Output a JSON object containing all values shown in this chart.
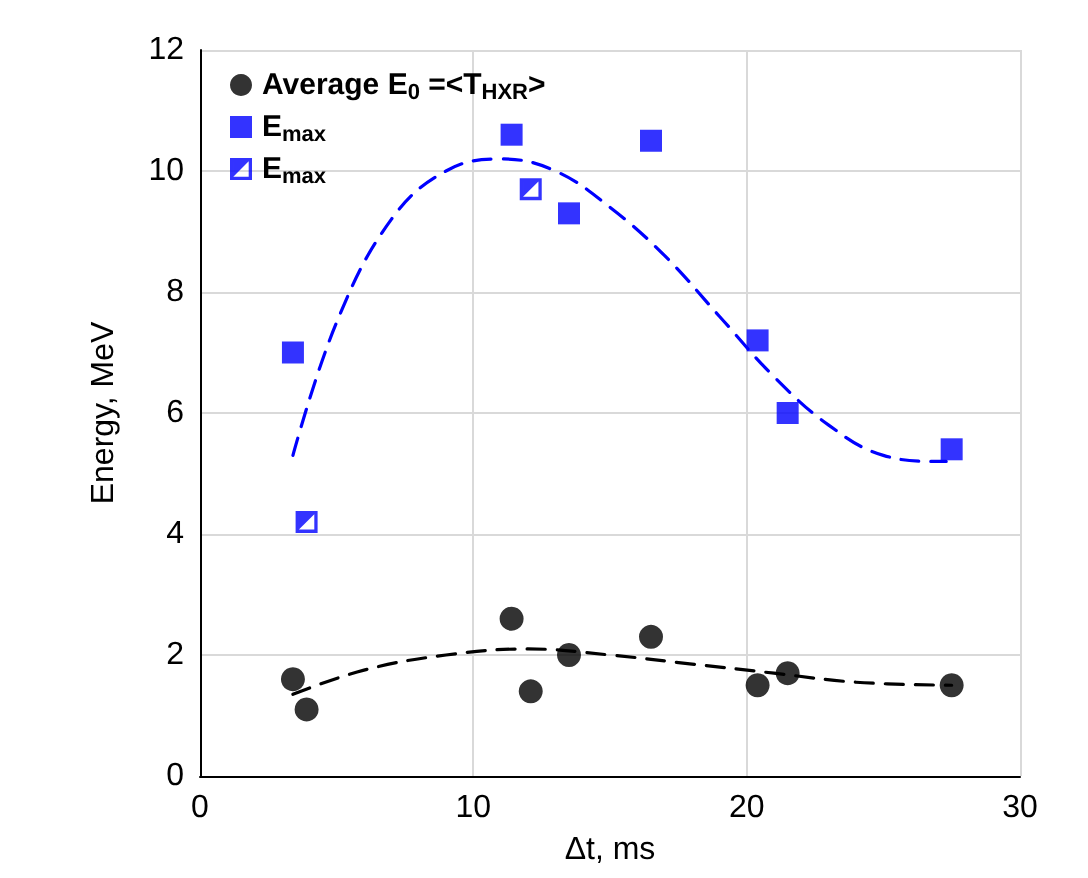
{
  "chart_data": {
    "type": "scatter",
    "xlabel": "Δt, ms",
    "ylabel": "Energy, MeV",
    "xlim": [
      0,
      30
    ],
    "xticks": [
      0,
      10,
      20,
      30
    ],
    "ylim": [
      0,
      12
    ],
    "yticks": [
      0,
      2,
      4,
      6,
      8,
      10,
      12
    ],
    "grid": true,
    "legend": "top left",
    "series": [
      {
        "name": "Average E$_{0}$ =<T$_{HXR}$>",
        "color": "#000000",
        "marker": "circle",
        "x": [
          3.4,
          3.9,
          11.4,
          12.1,
          13.5,
          16.5,
          20.4,
          21.5,
          27.5
        ],
        "values": [
          1.6,
          1.1,
          2.6,
          1.4,
          2.0,
          2.3,
          1.5,
          1.7,
          1.5
        ]
      },
      {
        "name": "E$_{max}$",
        "color": "#0000ff",
        "marker": "square",
        "x": [
          3.4,
          11.4,
          13.5,
          16.5,
          20.4,
          21.5,
          27.5
        ],
        "values": [
          7.0,
          10.6,
          9.3,
          10.5,
          7.2,
          6.0,
          5.4
        ]
      },
      {
        "name": "E$_{max}$",
        "color": "#0000ff",
        "marker": "square",
        "x": [
          3.9,
          12.1
        ],
        "values": [
          4.2,
          9.7
        ]
      },
      {
        "type": "line",
        "color": "#0000ff",
        "line_style": "dashed",
        "marker": "none",
        "x": [
          3.4,
          5,
          7,
          9,
          11,
          13,
          15,
          17,
          19,
          21,
          23,
          25,
          27,
          27.3
        ],
        "values": [
          5.3,
          7.5,
          9.2,
          10.0,
          10.2,
          10.0,
          9.4,
          8.6,
          7.6,
          6.6,
          5.8,
          5.3,
          5.2,
          5.2
        ]
      },
      {
        "type": "line",
        "color": "#000000",
        "line_style": "dashed",
        "marker": "none",
        "x": [
          3.4,
          6,
          9,
          12,
          15,
          18,
          21,
          24,
          27.5
        ],
        "values": [
          1.35,
          1.75,
          2.0,
          2.1,
          2.0,
          1.85,
          1.7,
          1.55,
          1.5
        ]
      }
    ]
  }
}
